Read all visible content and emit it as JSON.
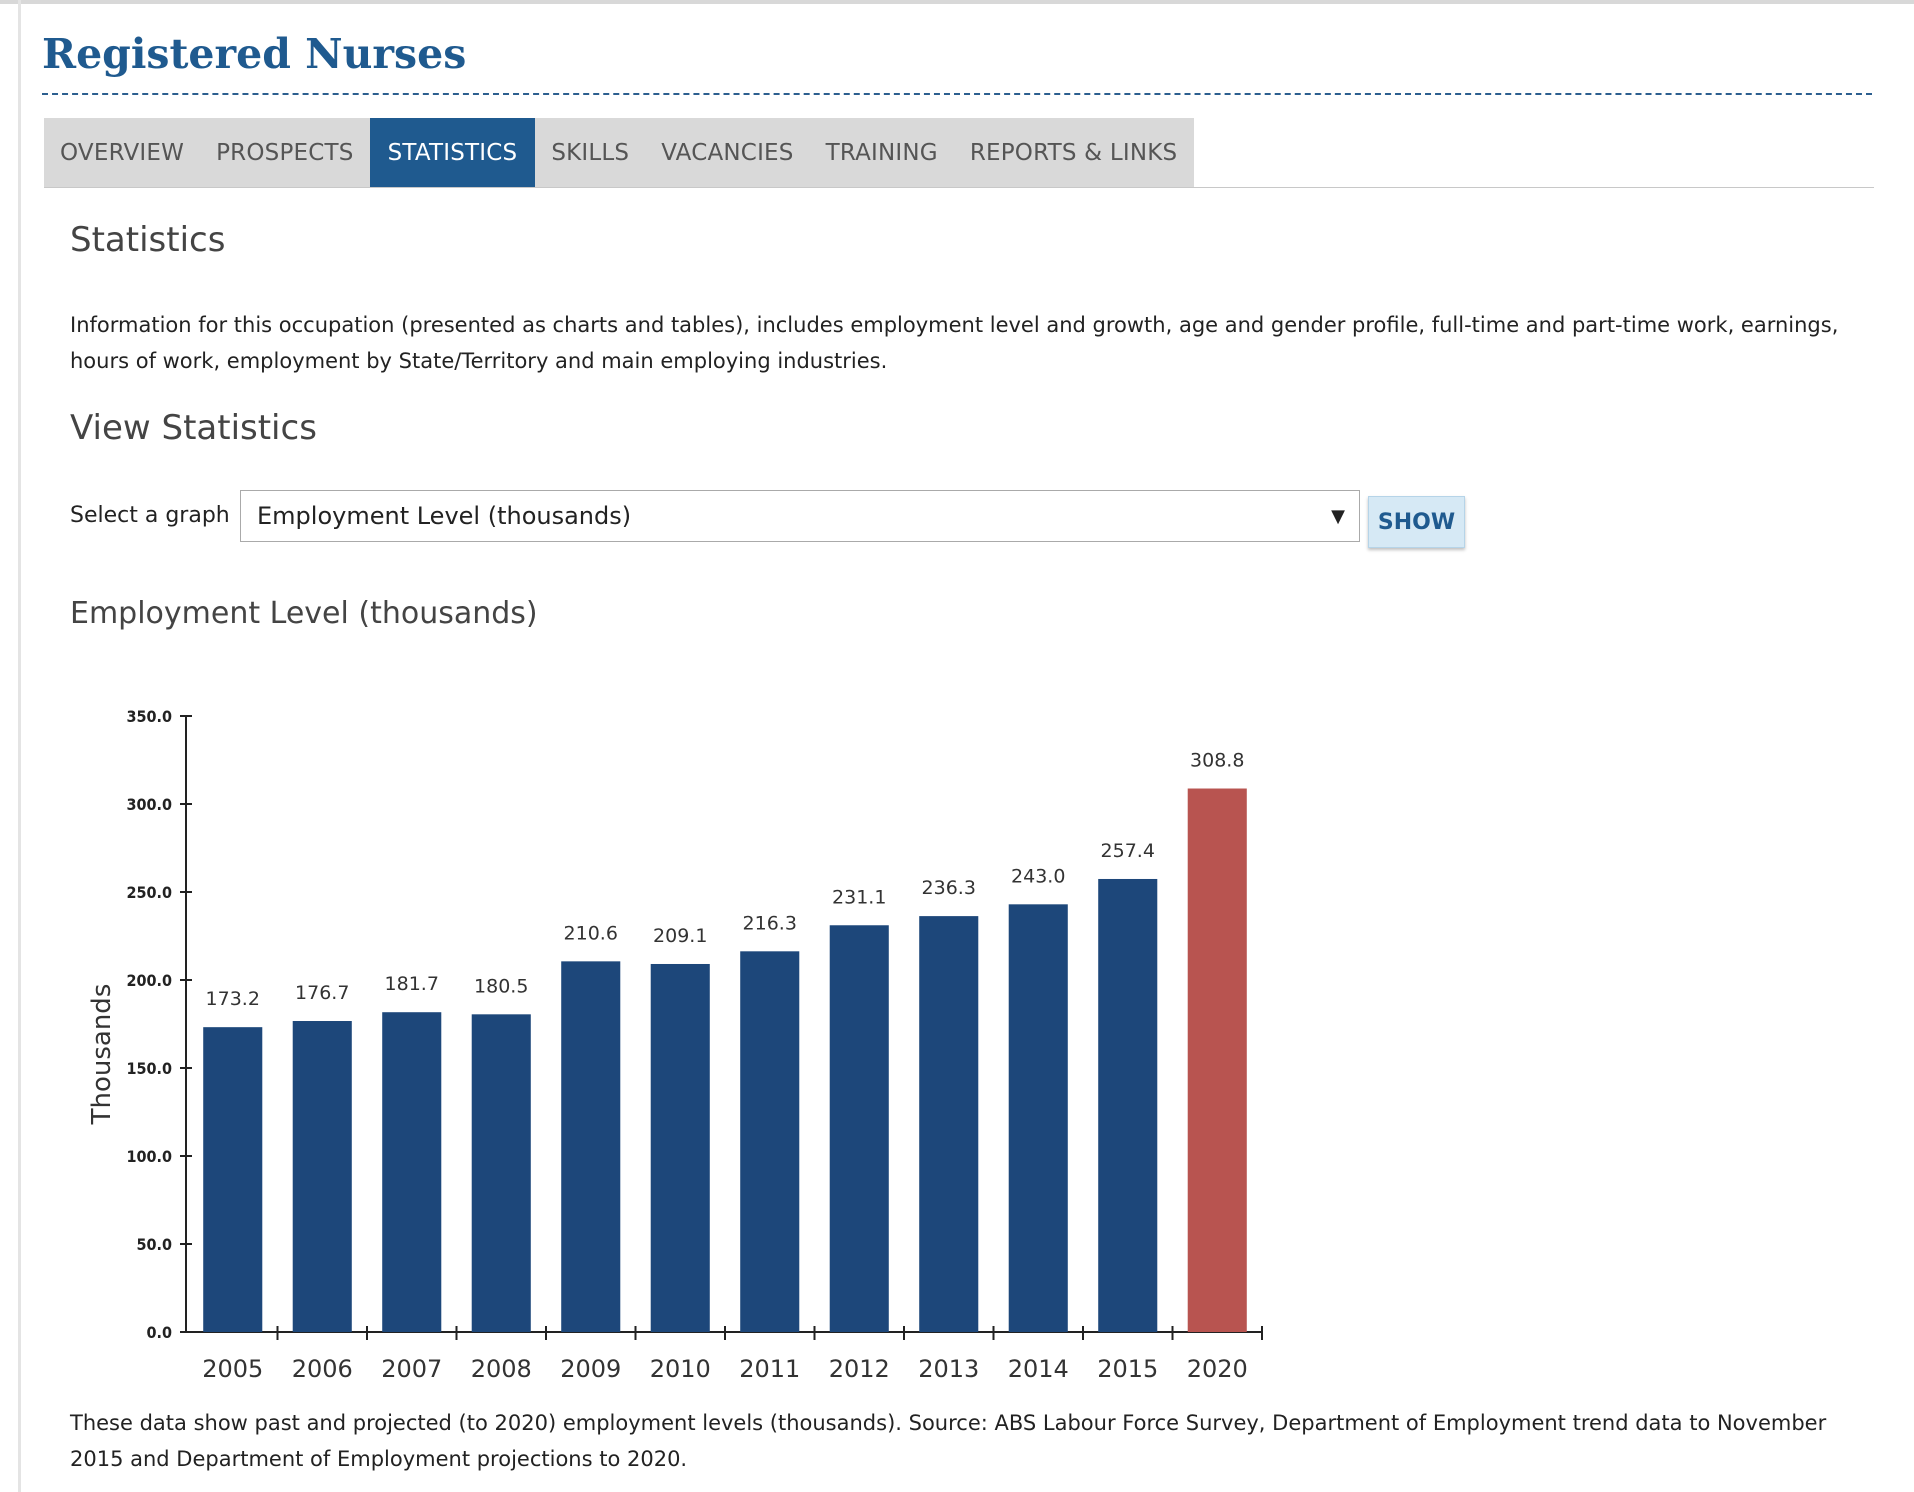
{
  "page": {
    "title": "Registered Nurses"
  },
  "tabs": [
    {
      "label": "OVERVIEW",
      "active": false
    },
    {
      "label": "PROSPECTS",
      "active": false
    },
    {
      "label": "STATISTICS",
      "active": true
    },
    {
      "label": "SKILLS",
      "active": false
    },
    {
      "label": "VACANCIES",
      "active": false
    },
    {
      "label": "TRAINING",
      "active": false
    },
    {
      "label": "REPORTS & LINKS",
      "active": false
    }
  ],
  "statistics": {
    "heading": "Statistics",
    "intro": "Information for this occupation (presented as charts and tables), includes employment level and growth, age and gender profile, full-time and part-time work, earnings, hours of work, employment by State/Territory and main employing industries."
  },
  "view_statistics": {
    "heading": "View Statistics",
    "select_label": "Select a graph",
    "selected_value": "Employment Level (thousands)",
    "show_label": "SHOW"
  },
  "chart_heading": "Employment Level (thousands)",
  "footnote": "These data show past and projected (to 2020) employment levels (thousands). Source: ABS Labour Force Survey, Department of Employment trend data to November 2015 and Department of Employment projections to 2020.",
  "colors": {
    "brand": "#1f5a8f",
    "bar_actual": "#1d477a",
    "bar_projected": "#b85450"
  },
  "chart_data": {
    "type": "bar",
    "title": "",
    "xlabel": "",
    "ylabel": "Thousands",
    "ylim": [
      0,
      350
    ],
    "yticks": [
      "0.0",
      "50.0",
      "100.0",
      "150.0",
      "200.0",
      "250.0",
      "300.0",
      "350.0"
    ],
    "categories": [
      "2005",
      "2006",
      "2007",
      "2008",
      "2009",
      "2010",
      "2011",
      "2012",
      "2013",
      "2014",
      "2015",
      "2020"
    ],
    "values": [
      173.2,
      176.7,
      181.7,
      180.5,
      210.6,
      209.1,
      216.3,
      231.1,
      236.3,
      243.0,
      257.4,
      308.8
    ],
    "value_labels": [
      "173.2",
      "176.7",
      "181.7",
      "180.5",
      "210.6",
      "209.1",
      "216.3",
      "231.1",
      "236.3",
      "243.0",
      "257.4",
      "308.8"
    ],
    "projected": [
      false,
      false,
      false,
      false,
      false,
      false,
      false,
      false,
      false,
      false,
      false,
      true
    ],
    "grid": false,
    "legend": "none"
  }
}
